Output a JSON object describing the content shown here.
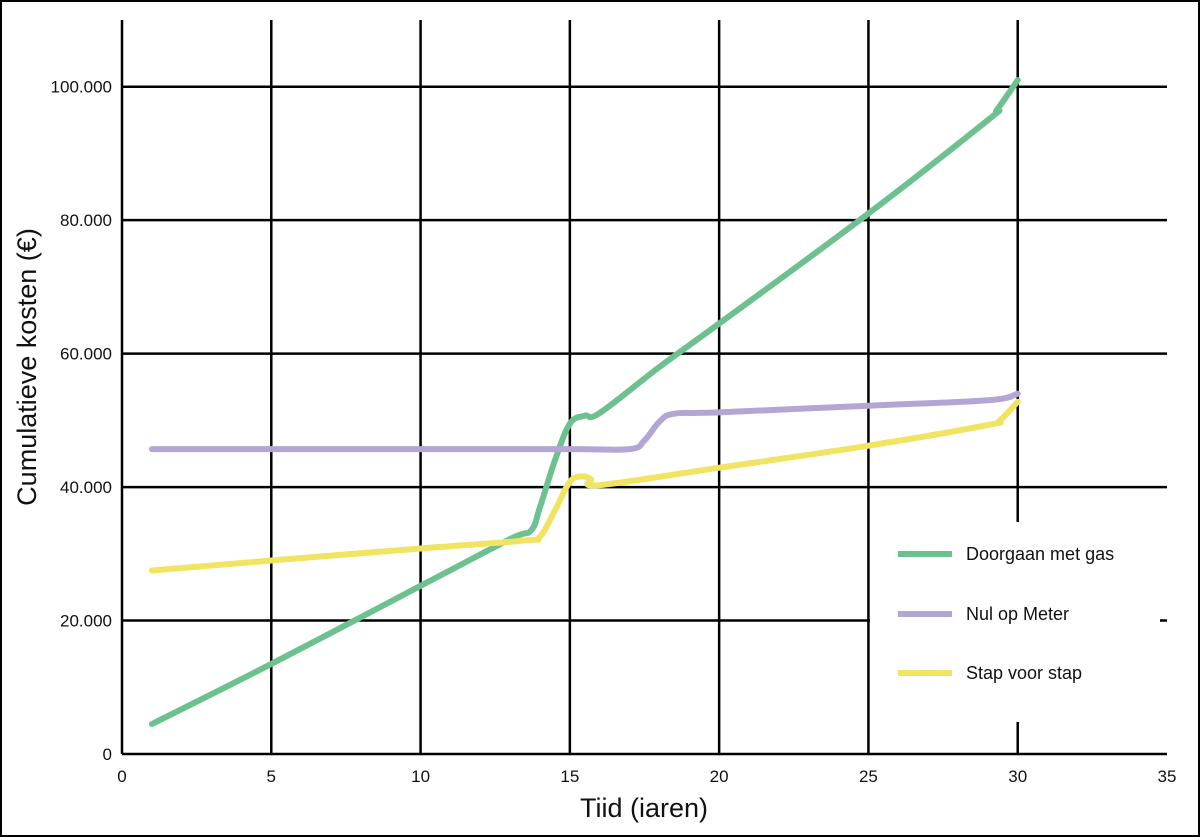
{
  "chart_data": {
    "type": "line",
    "title": "",
    "xlabel": "Tiid (iaren)",
    "ylabel": "Cumulatieve kosten (€)",
    "xlim": [
      0,
      35
    ],
    "ylim": [
      0,
      110000
    ],
    "x_ticks": [
      0,
      5,
      10,
      15,
      20,
      25,
      30,
      35
    ],
    "x_tick_labels": [
      "0",
      "5",
      "10",
      "15",
      "20",
      "25",
      "30",
      "35"
    ],
    "y_ticks": [
      0,
      20000,
      40000,
      60000,
      80000,
      100000
    ],
    "y_tick_labels": [
      "0",
      "20.000",
      "40.000",
      "60.000",
      "80.000",
      "100.000"
    ],
    "grid": true,
    "legend_position": "bottom-right",
    "series": [
      {
        "name": "Doorgaan met gas",
        "color": "#6cc18f",
        "x": [
          1,
          5,
          10,
          13,
          13.7,
          14,
          14.5,
          15,
          15.5,
          16,
          18,
          20,
          25,
          29,
          29.3,
          30
        ],
        "y": [
          4500,
          13500,
          25200,
          32200,
          33500,
          37000,
          44000,
          49500,
          50700,
          51100,
          58000,
          64500,
          81000,
          95000,
          96500,
          101000
        ]
      },
      {
        "name": "Nul op Meter",
        "color": "#b4a6d4",
        "x": [
          1,
          5,
          10,
          15,
          17,
          17.5,
          18,
          18.5,
          20,
          25,
          29,
          30
        ],
        "y": [
          45700,
          45700,
          45700,
          45700,
          45700,
          47000,
          49800,
          51000,
          51200,
          52200,
          53000,
          54000
        ]
      },
      {
        "name": "Stap voor stap",
        "color": "#f1e462",
        "x": [
          1,
          5,
          10,
          13.5,
          14,
          14.5,
          15,
          15.4,
          15.7,
          16,
          20,
          25,
          29,
          29.4,
          30
        ],
        "y": [
          27500,
          29000,
          30800,
          32000,
          32600,
          36500,
          40800,
          41600,
          41200,
          40300,
          42900,
          46200,
          49300,
          50000,
          52800
        ]
      }
    ]
  }
}
